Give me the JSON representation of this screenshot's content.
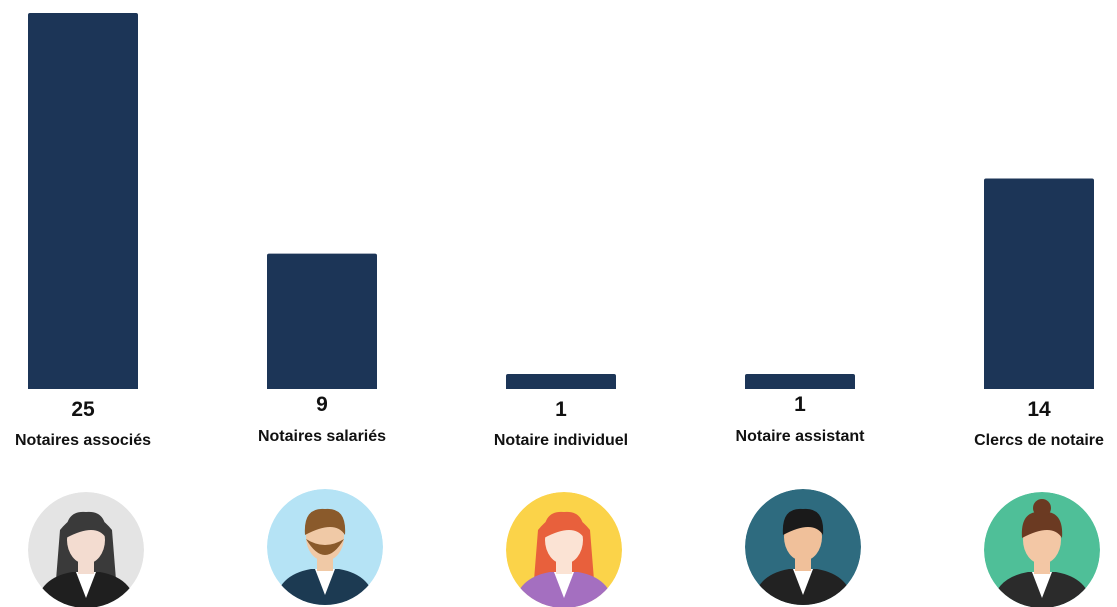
{
  "chart_data": {
    "type": "bar",
    "categories": [
      "Notaires associés",
      "Notaires salariés",
      "Notaire individuel",
      "Notaire assistant",
      "Clercs de notaire"
    ],
    "values": [
      25,
      9,
      1,
      1,
      14
    ],
    "color": "#1c3557"
  }
}
